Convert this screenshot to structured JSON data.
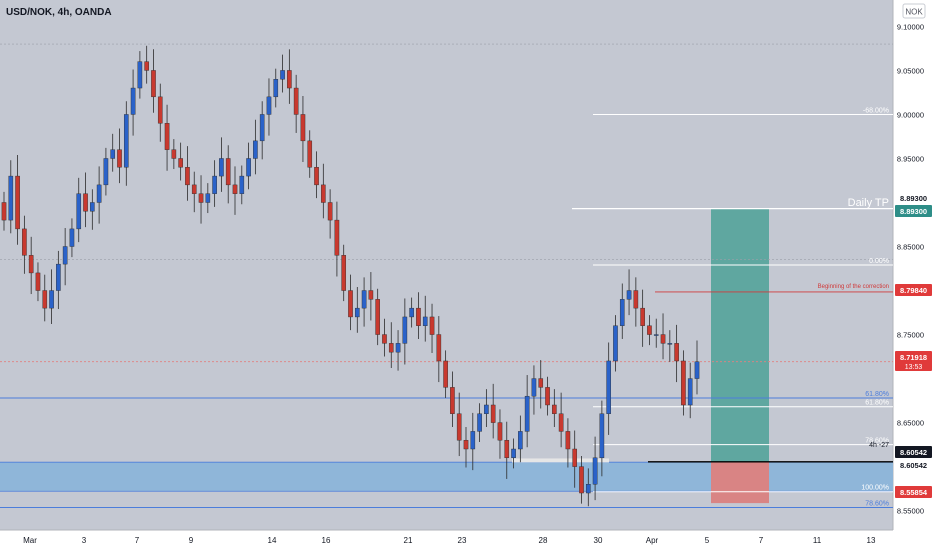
{
  "header": {
    "symbol": "USD/NOK, 4h, OANDA"
  },
  "currency_badge": "NOK",
  "annotations": {
    "daily_tp": "Daily TP",
    "correction": "Beginning of the correction",
    "timer_label": "4h -27"
  },
  "price_labels": [
    {
      "text": "8.89300",
      "kind": "plain"
    },
    {
      "text": "8.89300",
      "kind": "teal"
    },
    {
      "text": "8.79840",
      "kind": "red"
    },
    {
      "text": "8.71918",
      "kind": "red",
      "sub": "13:53"
    },
    {
      "text": "8.60542",
      "kind": "dark"
    },
    {
      "text": "8.60542",
      "kind": "plain"
    },
    {
      "text": "8.55854",
      "kind": "red"
    }
  ],
  "fib_levels": [
    {
      "label": "-68.00%",
      "price": 9.0,
      "color": "#ffffff"
    },
    {
      "label": "0.00%",
      "price": 8.829,
      "color": "#ffffff"
    },
    {
      "label": "61.80%",
      "price": 8.678,
      "color": "#4c7ddb"
    },
    {
      "label": "61.80%",
      "price": 8.668,
      "color": "#ffffff"
    },
    {
      "label": "78.60%",
      "price": 8.625,
      "color": "#ffffff"
    },
    {
      "label": "100.00%",
      "price": 8.5715,
      "color": "#ffffff"
    },
    {
      "label": "78.60%",
      "price": 8.5535,
      "color": "#4c7ddb"
    }
  ],
  "colors": {
    "background": "#c4c8d2",
    "up_candle": "#2a62c9",
    "down_candle": "#c8392f",
    "teal_zone": "#5fa7a0",
    "red_zone": "#d98484",
    "blue_zone": "#8fb6d9",
    "price_line": "#e08080",
    "axis_bg": "#ffffff"
  },
  "chart_data": {
    "type": "candlestick",
    "title": "USD/NOK, 4h, OANDA",
    "y_ticks": [
      "9.10000",
      "9.05000",
      "9.00000",
      "8.95000",
      "8.85000",
      "8.75000",
      "8.65000",
      "8.55000"
    ],
    "x_ticks": [
      "Mar",
      "3",
      "7",
      "9",
      "14",
      "16",
      "21",
      "23",
      "28",
      "30",
      "Apr",
      "5",
      "7",
      "11",
      "13"
    ],
    "ylim": [
      8.528,
      9.13
    ],
    "last_price": 8.71918,
    "take_profit": 8.893,
    "entry": 8.60542,
    "stop": 8.55854,
    "correction_start": 8.7984,
    "closes": [
      8.88,
      8.93,
      8.87,
      8.84,
      8.82,
      8.8,
      8.78,
      8.8,
      8.83,
      8.85,
      8.87,
      8.91,
      8.89,
      8.9,
      8.92,
      8.95,
      8.96,
      8.94,
      9.0,
      9.03,
      9.06,
      9.05,
      9.02,
      8.99,
      8.96,
      8.95,
      8.94,
      8.92,
      8.91,
      8.9,
      8.91,
      8.93,
      8.95,
      8.92,
      8.91,
      8.93,
      8.95,
      8.97,
      9.0,
      9.02,
      9.04,
      9.05,
      9.03,
      9.0,
      8.97,
      8.94,
      8.92,
      8.9,
      8.88,
      8.84,
      8.8,
      8.77,
      8.78,
      8.8,
      8.79,
      8.75,
      8.74,
      8.73,
      8.74,
      8.77,
      8.78,
      8.76,
      8.77,
      8.75,
      8.72,
      8.69,
      8.66,
      8.63,
      8.62,
      8.64,
      8.66,
      8.67,
      8.65,
      8.63,
      8.61,
      8.62,
      8.64,
      8.68,
      8.7,
      8.69,
      8.67,
      8.66,
      8.64,
      8.62,
      8.6,
      8.57,
      8.58,
      8.61,
      8.66,
      8.72,
      8.76,
      8.79,
      8.8,
      8.78,
      8.76,
      8.75,
      8.75,
      8.74,
      8.74,
      8.72,
      8.67,
      8.7,
      8.71918
    ]
  }
}
